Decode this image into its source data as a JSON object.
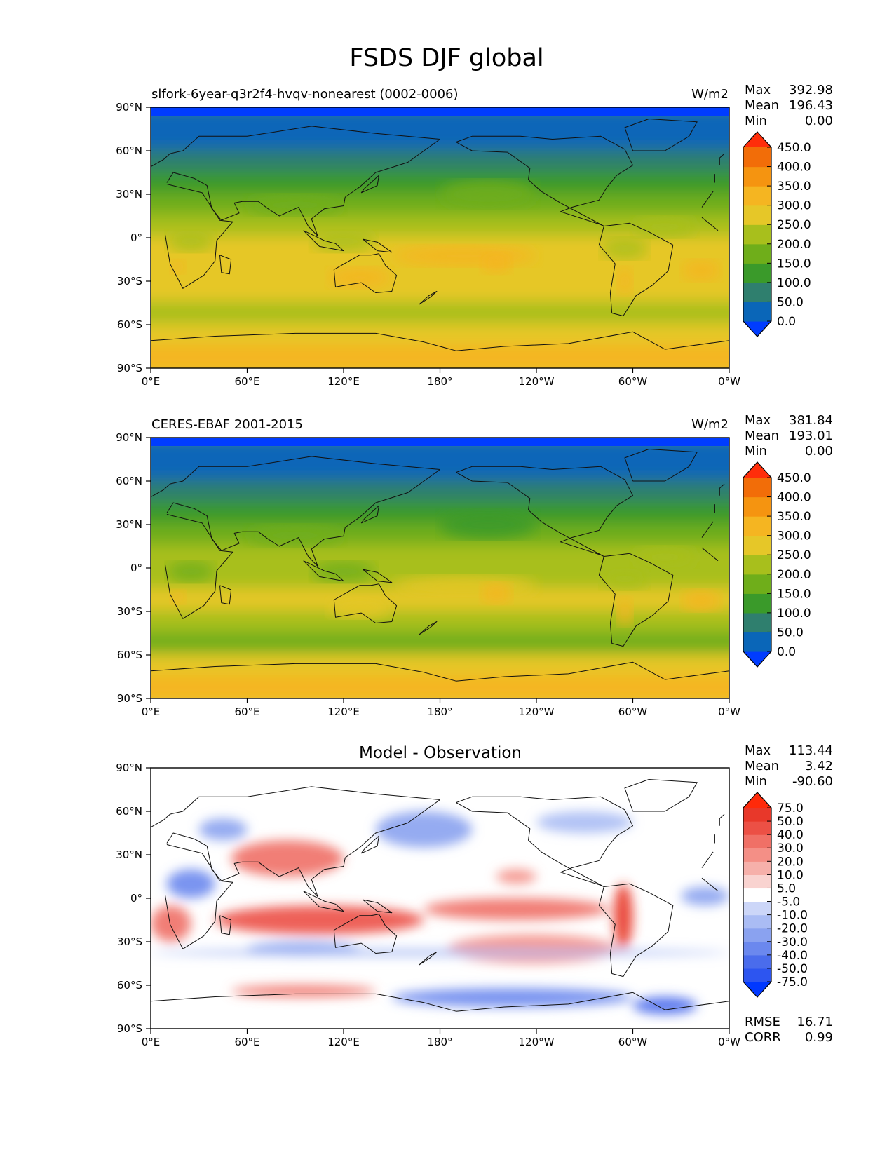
{
  "title": "FSDS DJF global",
  "panels": [
    {
      "id": "test",
      "left_title": "slfork-6year-q3r2f4-hvqv-nonearest (0002-0006)",
      "center_title": "",
      "units": "W/m2",
      "stats": [
        {
          "label": "Max",
          "value": "392.98"
        },
        {
          "label": "Mean",
          "value": "196.43"
        },
        {
          "label": "Min",
          "value": "0.00"
        }
      ],
      "colorbar": {
        "ticks": [
          "450.0",
          "400.0",
          "350.0",
          "300.0",
          "250.0",
          "200.0",
          "150.0",
          "100.0",
          "50.0",
          "0.0"
        ],
        "colors": [
          "#003cff",
          "#0a66b8",
          "#2f7f6e",
          "#3a9a2a",
          "#6fae1a",
          "#a8bf1c",
          "#e6c728",
          "#f5b521",
          "#f59410",
          "#f26d08",
          "#ff2e0a"
        ],
        "extend": "both"
      }
    },
    {
      "id": "ref",
      "left_title": "CERES-EBAF 2001-2015",
      "center_title": "",
      "units": "W/m2",
      "stats": [
        {
          "label": "Max",
          "value": "381.84"
        },
        {
          "label": "Mean",
          "value": "193.01"
        },
        {
          "label": "Min",
          "value": "0.00"
        }
      ],
      "colorbar": {
        "ticks": [
          "450.0",
          "400.0",
          "350.0",
          "300.0",
          "250.0",
          "200.0",
          "150.0",
          "100.0",
          "50.0",
          "0.0"
        ],
        "colors": [
          "#003cff",
          "#0a66b8",
          "#2f7f6e",
          "#3a9a2a",
          "#6fae1a",
          "#a8bf1c",
          "#e6c728",
          "#f5b521",
          "#f59410",
          "#f26d08",
          "#ff2e0a"
        ],
        "extend": "both"
      }
    },
    {
      "id": "diff",
      "left_title": "",
      "center_title": "Model - Observation",
      "units": "",
      "stats": [
        {
          "label": "Max",
          "value": "113.44"
        },
        {
          "label": "Mean",
          "value": "3.42"
        },
        {
          "label": "Min",
          "value": "-90.60"
        }
      ],
      "extra_stats": [
        {
          "label": "RMSE",
          "value": "16.71"
        },
        {
          "label": "CORR",
          "value": "0.99"
        }
      ],
      "colorbar": {
        "ticks": [
          "75.0",
          "50.0",
          "40.0",
          "30.0",
          "20.0",
          "10.0",
          "5.0",
          "-5.0",
          "-10.0",
          "-20.0",
          "-30.0",
          "-40.0",
          "-50.0",
          "-75.0"
        ],
        "colors": [
          "#0038ff",
          "#2d55f0",
          "#4a6cec",
          "#6b88ee",
          "#8aa2f0",
          "#aabcf4",
          "#ccd6f8",
          "#ffffff",
          "#f9d3d0",
          "#f6b0aa",
          "#f48f86",
          "#f07066",
          "#ec5045",
          "#e8382a",
          "#ff2a0a"
        ],
        "extend": "both"
      }
    }
  ],
  "axes": {
    "lat_ticks": [
      "90°N",
      "60°N",
      "30°N",
      "0°",
      "30°S",
      "60°S",
      "90°S"
    ],
    "lon_ticks": [
      "0°E",
      "60°E",
      "120°E",
      "180°",
      "120°W",
      "60°W",
      "0°W"
    ]
  },
  "chart_data": [
    {
      "type": "heatmap",
      "title": "slfork-6year-q3r2f4-hvqv-nonearest (0002-0006)",
      "variable": "FSDS",
      "units": "W/m2",
      "xlim": [
        0,
        360
      ],
      "ylim": [
        -90,
        90
      ],
      "levels": [
        0,
        50,
        100,
        150,
        200,
        250,
        300,
        350,
        400,
        450
      ],
      "zonal_profile": {
        "lat": [
          90,
          85,
          75,
          60,
          45,
          30,
          15,
          0,
          -15,
          -30,
          -45,
          -60,
          -75,
          -90
        ],
        "value": [
          0,
          20,
          25,
          60,
          120,
          170,
          220,
          240,
          280,
          270,
          230,
          170,
          330,
          360
        ]
      },
      "stats": {
        "max": 392.98,
        "mean": 196.43,
        "min": 0.0
      }
    },
    {
      "type": "heatmap",
      "title": "CERES-EBAF 2001-2015",
      "variable": "FSDS",
      "units": "W/m2",
      "xlim": [
        0,
        360
      ],
      "ylim": [
        -90,
        90
      ],
      "levels": [
        0,
        50,
        100,
        150,
        200,
        250,
        300,
        350,
        400,
        450
      ],
      "zonal_profile": {
        "lat": [
          90,
          85,
          75,
          60,
          45,
          30,
          15,
          0,
          -15,
          -30,
          -45,
          -60,
          -75,
          -90
        ],
        "value": [
          0,
          20,
          25,
          60,
          115,
          165,
          210,
          225,
          265,
          265,
          225,
          170,
          330,
          355
        ]
      },
      "stats": {
        "max": 381.84,
        "mean": 193.01,
        "min": 0.0
      }
    },
    {
      "type": "heatmap",
      "title": "Model - Observation",
      "variable": "FSDS difference",
      "units": "W/m2",
      "xlim": [
        0,
        360
      ],
      "ylim": [
        -90,
        90
      ],
      "levels": [
        -75,
        -50,
        -40,
        -30,
        -20,
        -10,
        -5,
        5,
        10,
        20,
        30,
        40,
        50,
        75
      ],
      "stats": {
        "max": 113.44,
        "mean": 3.42,
        "min": -90.6,
        "rmse": 16.71,
        "corr": 0.99
      }
    }
  ]
}
